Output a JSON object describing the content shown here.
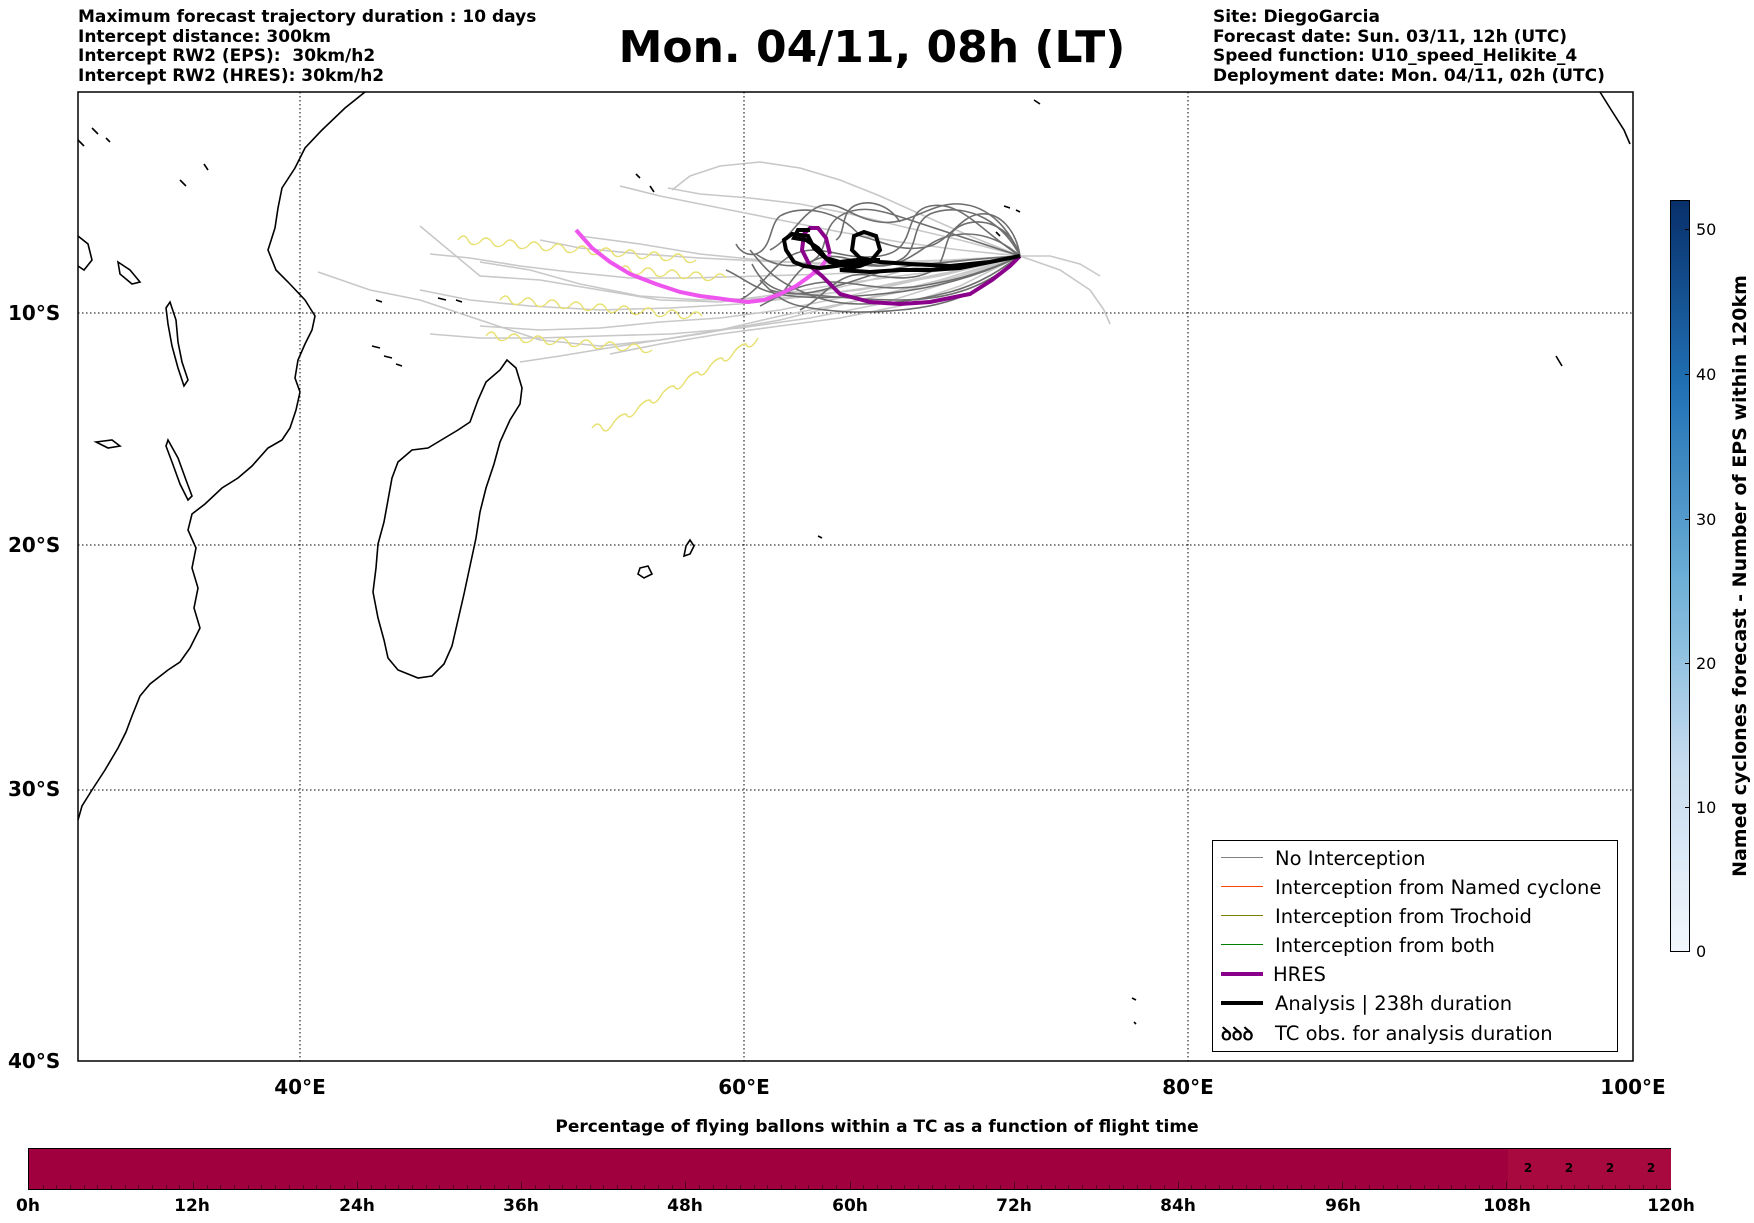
{
  "header_left": [
    "Maximum forecast trajectory duration : 10 days",
    "Intercept distance: 300km",
    "Intercept RW2 (EPS):  30km/h2",
    "Intercept RW2 (HRES): 30km/h2"
  ],
  "header_right": [
    "Site: DiegoGarcia",
    "Forecast date: Sun. 03/11, 12h (UTC)",
    "Speed function: U10_speed_Helikite_4",
    "Deployment date: Mon. 04/11, 02h (UTC)"
  ],
  "title": "Mon. 04/11, 08h (LT)",
  "map": {
    "lon_range": [
      30,
      100
    ],
    "lat_range": [
      -40,
      0.5
    ],
    "lat_labels": [
      "10°S",
      "20°S",
      "30°S",
      "40°S"
    ],
    "lon_labels": [
      "40°E",
      "60°E",
      "80°E",
      "100°E"
    ],
    "gridlines": "dotted",
    "colors": {
      "no_interception": "#808080",
      "named_cyclone": "#ff4500",
      "trochoid": "#808000",
      "both": "#008000",
      "hres": "#8b008b",
      "hres_early": "#ee55ee",
      "analysis": "#000000",
      "tc_obs": "#e8e070"
    }
  },
  "legend": {
    "placement": "lower-right",
    "items": [
      {
        "label": "No Interception",
        "style": "thin-gray"
      },
      {
        "label": "Interception from Named cyclone",
        "style": "thin-orangered"
      },
      {
        "label": "Interception from Trochoid",
        "style": "thin-olive"
      },
      {
        "label": "Interception from both",
        "style": "thin-green"
      },
      {
        "label": "HRES",
        "style": "thick-purple"
      },
      {
        "label": "Analysis | 238h duration",
        "style": "thick-black"
      },
      {
        "label": "TC obs. for analysis duration",
        "style": "loops",
        "symbol": "ꝺꝺꝺ"
      }
    ]
  },
  "colorbar_vertical": {
    "label": "Named cyclones forecast - Number of EPS within 120km",
    "ticks": [
      "0",
      "10",
      "20",
      "30",
      "40",
      "50"
    ],
    "range": [
      0,
      52
    ]
  },
  "colorbar_horizontal": {
    "title": "Percentage of flying ballons within a TC as a function of flight time",
    "ticks": [
      "0h",
      "12h",
      "24h",
      "36h",
      "48h",
      "60h",
      "72h",
      "84h",
      "96h",
      "108h",
      "120h"
    ],
    "cell_values": [
      "2",
      "2",
      "2",
      "2"
    ],
    "color": "#a0003e"
  }
}
